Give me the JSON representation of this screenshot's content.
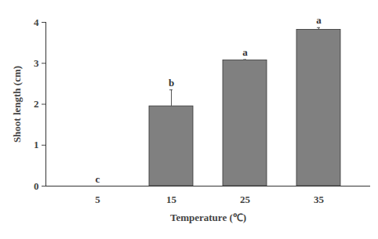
{
  "chart_data": {
    "type": "bar",
    "x_label": "Temperature (℃)",
    "y_label": "Shoot length (cm)",
    "categories": [
      "5",
      "15",
      "25",
      "35"
    ],
    "values": [
      0,
      1.95,
      3.07,
      3.82
    ],
    "errors": [
      0,
      0.4,
      0.02,
      0.05
    ],
    "significance_letters": [
      "c",
      "b",
      "a",
      "a"
    ],
    "color": "#808080",
    "ylim": [
      0,
      4
    ],
    "yticks": [
      0,
      1,
      2,
      3,
      4
    ],
    "grid": false
  }
}
